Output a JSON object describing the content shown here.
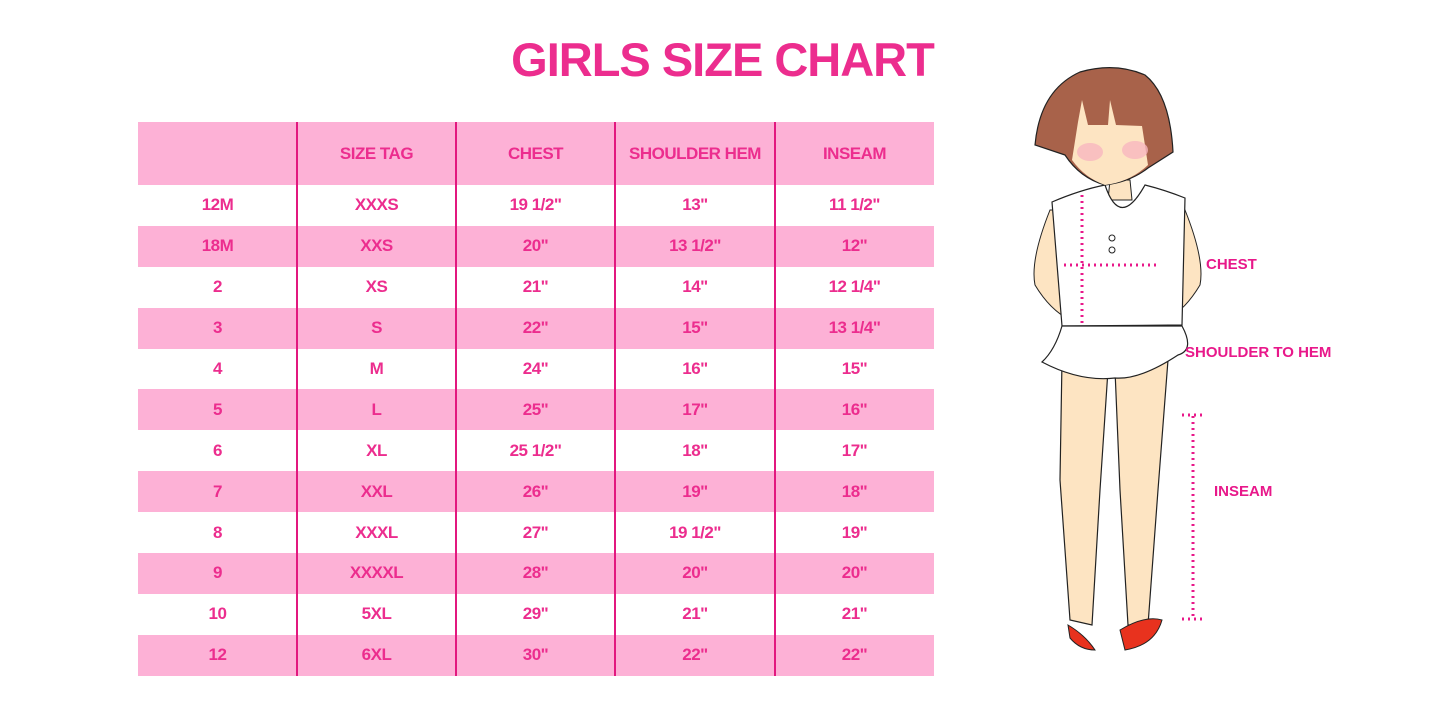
{
  "title": "GIRLS SIZE CHART",
  "colors": {
    "accent": "#ec2d8e",
    "band": "#fdb1d6",
    "line": "#e2187f"
  },
  "table": {
    "headers": [
      "",
      "SIZE TAG",
      "CHEST",
      "SHOULDER HEM",
      "INSEAM"
    ],
    "rows": [
      [
        "12M",
        "XXXS",
        "19 1/2\"",
        "13\"",
        "11 1/2\""
      ],
      [
        "18M",
        "XXS",
        "20\"",
        "13 1/2\"",
        "12\""
      ],
      [
        "2",
        "XS",
        "21\"",
        "14\"",
        "12 1/4\""
      ],
      [
        "3",
        "S",
        "22\"",
        "15\"",
        "13 1/4\""
      ],
      [
        "4",
        "M",
        "24\"",
        "16\"",
        "15\""
      ],
      [
        "5",
        "L",
        "25\"",
        "17\"",
        "16\""
      ],
      [
        "6",
        "XL",
        "25 1/2\"",
        "18\"",
        "17\""
      ],
      [
        "7",
        "XXL",
        "26\"",
        "19\"",
        "18\""
      ],
      [
        "8",
        "XXXL",
        "27\"",
        "19 1/2\"",
        "19\""
      ],
      [
        "9",
        "XXXXL",
        "28\"",
        "20\"",
        "20\""
      ],
      [
        "10",
        "5XL",
        "29\"",
        "21\"",
        "21\""
      ],
      [
        "12",
        "6XL",
        "30\"",
        "22\"",
        "22\""
      ]
    ]
  },
  "figure": {
    "labels": {
      "chest": "CHEST",
      "shoulder_to_hem": "SHOULDER TO HEM",
      "inseam": "INSEAM"
    }
  }
}
